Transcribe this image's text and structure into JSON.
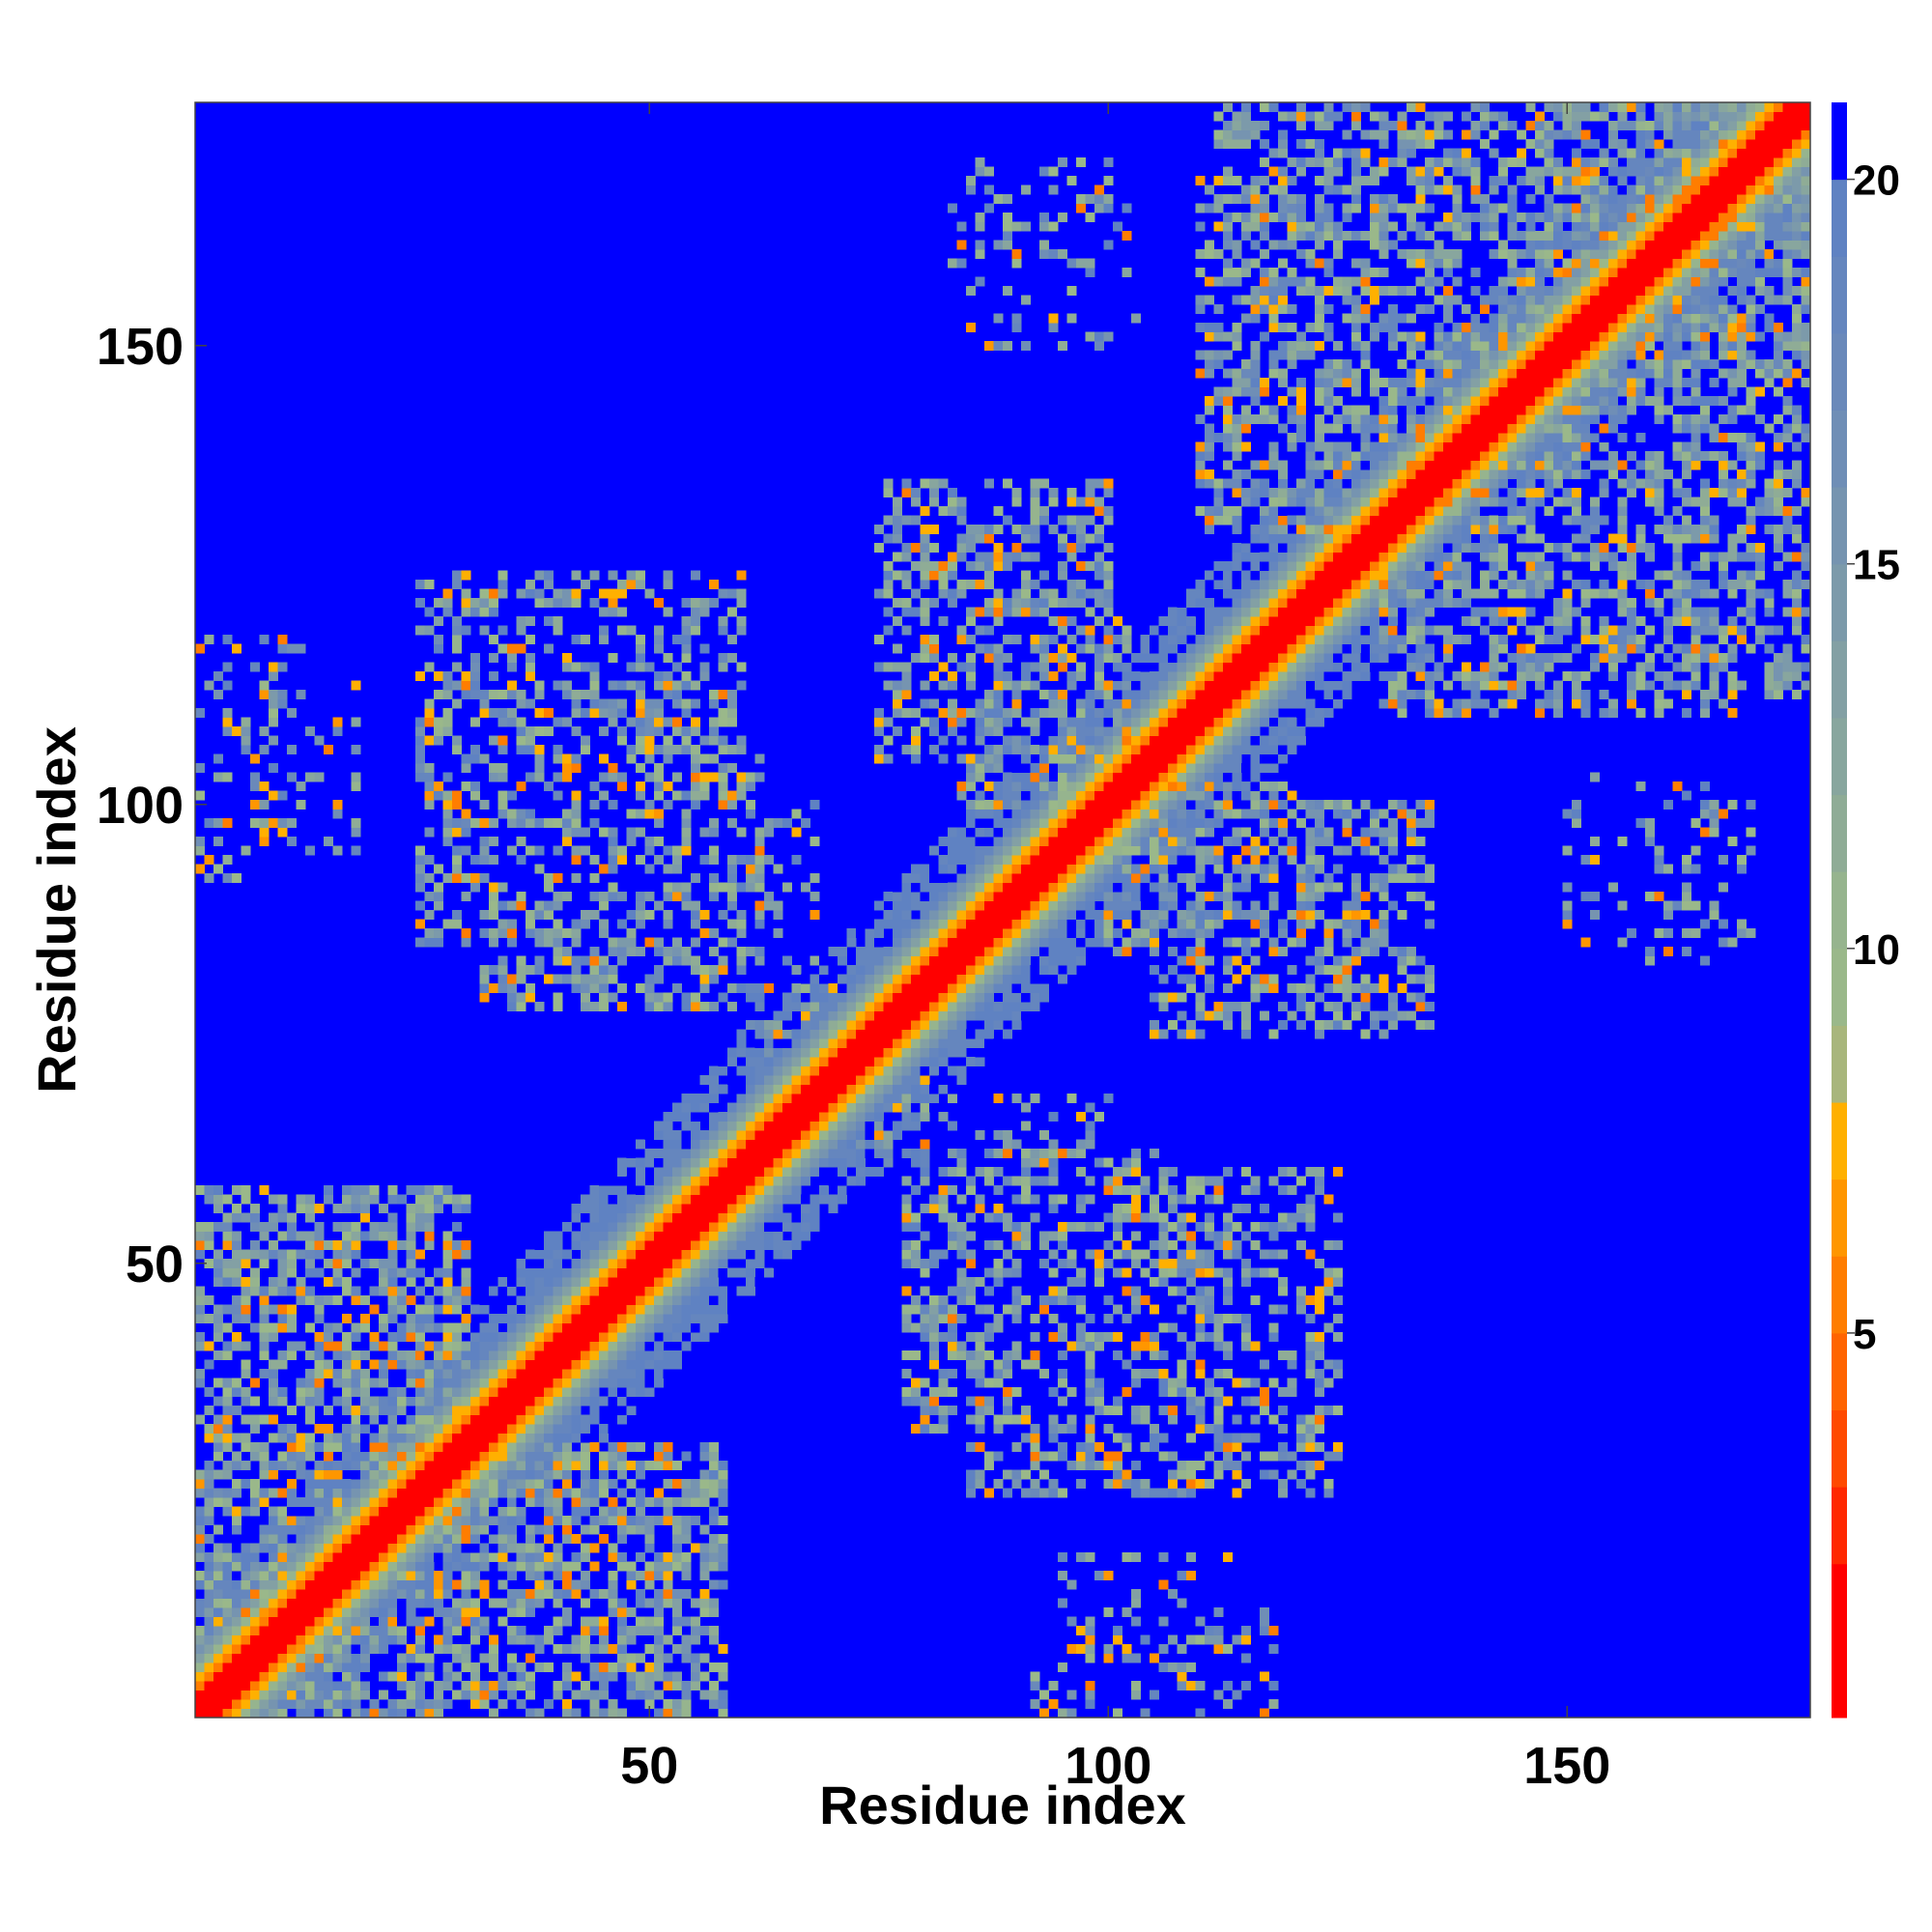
{
  "chart_data": {
    "type": "heatmap",
    "title": "",
    "xlabel": "Residue index",
    "ylabel": "Residue index",
    "n_residues": 176,
    "xlim": [
      1,
      176
    ],
    "ylim": [
      1,
      176
    ],
    "x_ticks": [
      50,
      100,
      150
    ],
    "y_ticks": [
      50,
      100,
      150
    ],
    "x_tick_labels": [
      "50",
      "100",
      "150"
    ],
    "y_tick_labels": [
      "50",
      "100",
      "150"
    ],
    "colorbar": {
      "ticks": [
        5,
        10,
        15,
        20
      ],
      "tick_labels": [
        "5",
        "10",
        "15",
        "20"
      ],
      "range": [
        0,
        21
      ],
      "levels": [
        {
          "max": 2,
          "color": "#ff0000"
        },
        {
          "max": 3,
          "color": "#ff2800"
        },
        {
          "max": 4,
          "color": "#ff4a00"
        },
        {
          "max": 5,
          "color": "#ff6400"
        },
        {
          "max": 6,
          "color": "#ff7d00"
        },
        {
          "max": 7,
          "color": "#ff9600"
        },
        {
          "max": 8,
          "color": "#ffb000"
        },
        {
          "max": 9,
          "color": "#a8b67c"
        },
        {
          "max": 10,
          "color": "#9ab88a"
        },
        {
          "max": 11,
          "color": "#96b48e"
        },
        {
          "max": 12,
          "color": "#8fac96"
        },
        {
          "max": 13,
          "color": "#88a69e"
        },
        {
          "max": 14,
          "color": "#83a0a4"
        },
        {
          "max": 15,
          "color": "#7c9aaa"
        },
        {
          "max": 16,
          "color": "#7694b0"
        },
        {
          "max": 17,
          "color": "#6f8eb6"
        },
        {
          "max": 18,
          "color": "#6a89ba"
        },
        {
          "max": 19,
          "color": "#6586be"
        },
        {
          "max": 20,
          "color": "#5f82c2"
        },
        {
          "max": 21,
          "color": "#0000ff"
        }
      ]
    },
    "diagonal": {
      "band_core": 2,
      "band_orange": 4,
      "band_halo": 8
    },
    "contact_regions": [
      {
        "x0": 1,
        "x1": 30,
        "y0": 1,
        "y1": 57,
        "strength": 0.6
      },
      {
        "x0": 1,
        "x1": 58,
        "y0": 1,
        "y1": 30,
        "strength": 0.6
      },
      {
        "x0": 1,
        "x1": 12,
        "y0": 92,
        "y1": 118,
        "strength": 0.25
      },
      {
        "x0": 25,
        "x1": 60,
        "y0": 85,
        "y1": 125,
        "strength": 0.45
      },
      {
        "x0": 40,
        "x1": 68,
        "y0": 78,
        "y1": 100,
        "strength": 0.25
      },
      {
        "x0": 75,
        "x1": 100,
        "y0": 118,
        "y1": 132,
        "strength": 0.45
      },
      {
        "x0": 84,
        "x1": 102,
        "y0": 100,
        "y1": 120,
        "strength": 0.5
      },
      {
        "x0": 78,
        "x1": 105,
        "y0": 32,
        "y1": 62,
        "strength": 0.45
      },
      {
        "x0": 92,
        "x1": 120,
        "y0": 32,
        "y1": 55,
        "strength": 0.25
      },
      {
        "x0": 105,
        "x1": 135,
        "y0": 75,
        "y1": 100,
        "strength": 0.5
      },
      {
        "x0": 110,
        "x1": 150,
        "y0": 130,
        "y1": 168,
        "strength": 0.55
      },
      {
        "x0": 145,
        "x1": 176,
        "y0": 112,
        "y1": 150,
        "strength": 0.55
      },
      {
        "x0": 145,
        "x1": 176,
        "y0": 155,
        "y1": 176,
        "strength": 0.6
      },
      {
        "x0": 150,
        "x1": 170,
        "y0": 85,
        "y1": 100,
        "strength": 0.2
      },
      {
        "x0": 83,
        "x1": 103,
        "y0": 153,
        "y1": 165,
        "strength": 0.2
      },
      {
        "x0": 95,
        "x1": 115,
        "y0": 1,
        "y1": 18,
        "strength": 0.2
      },
      {
        "x0": 60,
        "x1": 75,
        "y0": 70,
        "y1": 80,
        "strength": 0.2
      }
    ]
  }
}
